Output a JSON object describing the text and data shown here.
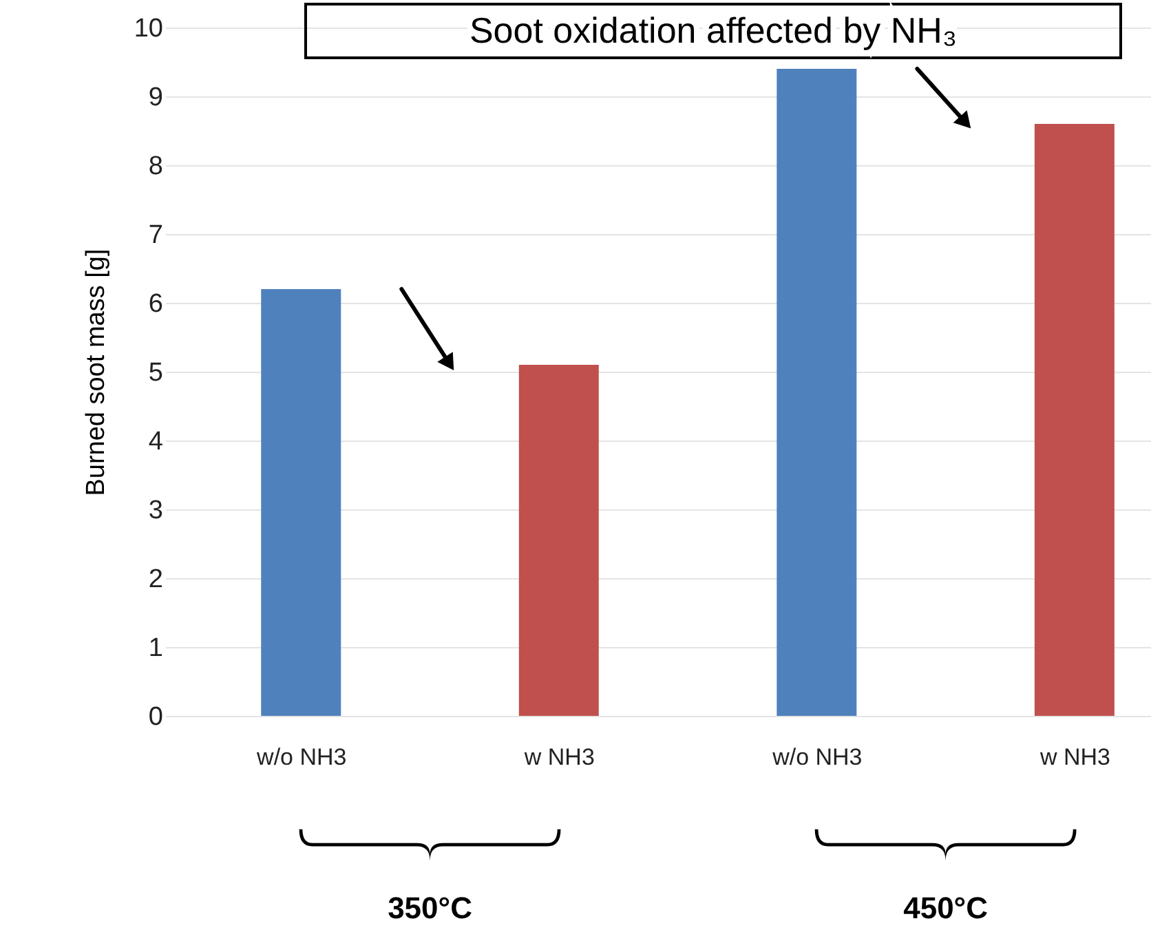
{
  "chart_data": {
    "type": "bar",
    "title": "Soot oxidation affected by NH₃",
    "ylabel": "Burned soot mass [g]",
    "categories": [
      "w/o NH3",
      "w NH3",
      "w/o NH3",
      "w NH3"
    ],
    "values": [
      6.2,
      5.1,
      9.4,
      8.6
    ],
    "colors": [
      "#4f81bd",
      "#c0504d",
      "#4f81bd",
      "#c0504d"
    ],
    "ylim": [
      0,
      10
    ],
    "yticks": [
      0,
      1,
      2,
      3,
      4,
      5,
      6,
      7,
      8,
      9,
      10
    ],
    "grid": "y",
    "annotations": [
      "350°C",
      "450°C"
    ]
  }
}
